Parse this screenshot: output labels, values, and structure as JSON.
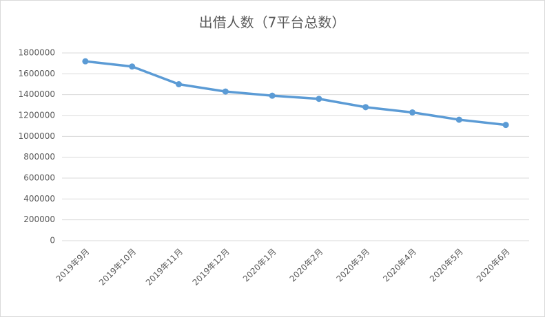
{
  "chart_data": {
    "type": "line",
    "title": "出借人数（7平台总数）",
    "categories": [
      "2019年9月",
      "2019年10月",
      "2019年11月",
      "2019年12月",
      "2020年1月",
      "2020年2月",
      "2020年3月",
      "2020年4月",
      "2020年5月",
      "2020年6月"
    ],
    "series": [
      {
        "name": "出借人数",
        "color": "#5b9bd5",
        "values": [
          1720000,
          1670000,
          1500000,
          1430000,
          1390000,
          1360000,
          1280000,
          1230000,
          1160000,
          1110000
        ]
      }
    ],
    "ylim": [
      0,
      1800000
    ],
    "yticks": [
      0,
      200000,
      400000,
      600000,
      800000,
      1000000,
      1200000,
      1400000,
      1600000,
      1800000
    ],
    "grid": true
  }
}
